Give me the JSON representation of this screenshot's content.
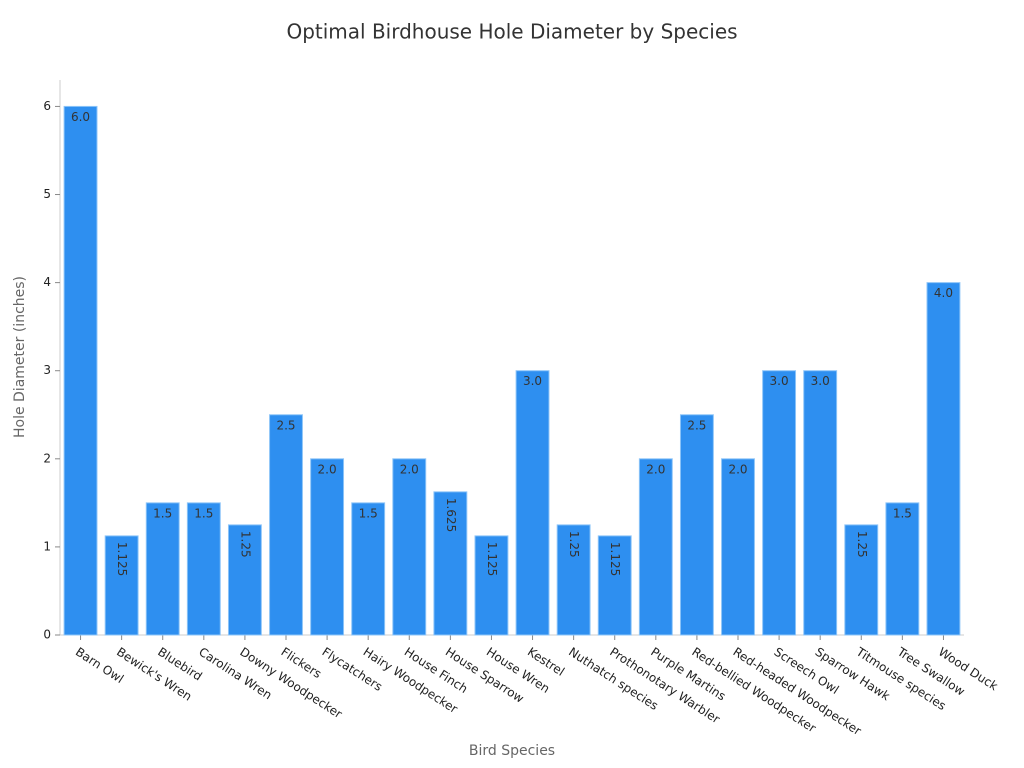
{
  "chart_data": {
    "type": "bar",
    "title": "Optimal Birdhouse Hole Diameter by Species",
    "x_label": "Bird Species",
    "y_label": "Hole Diameter (inches)",
    "categories": [
      "Barn Owl",
      "Bewick's Wren",
      "Bluebird",
      "Carolina Wren",
      "Downy Woodpecker",
      "Flickers",
      "Flycatchers",
      "Hairy Woodpecker",
      "House Finch",
      "House Sparrow",
      "House Wren",
      "Kestrel",
      "Nuthatch species",
      "Prothonotary Warbler",
      "Purple Martins",
      "Red-bellied Woodpecker",
      "Red-headed Woodpecker",
      "Screech Owl",
      "Sparrow Hawk",
      "Titmouse species",
      "Tree Swallow",
      "Wood Duck"
    ],
    "values": [
      6.0,
      1.125,
      1.5,
      1.5,
      1.25,
      2.5,
      2.0,
      1.5,
      2.0,
      1.625,
      1.125,
      3.0,
      1.25,
      1.125,
      2.0,
      2.5,
      2.0,
      3.0,
      3.0,
      1.25,
      1.5,
      4.0
    ],
    "value_labels": [
      "6.0",
      "1.125",
      "1.5",
      "1.5",
      "1.25",
      "2.5",
      "2.0",
      "1.5",
      "2.0",
      "1.625",
      "1.125",
      "3.0",
      "1.25",
      "1.125",
      "2.0",
      "2.5",
      "2.0",
      "3.0",
      "3.0",
      "1.25",
      "1.5",
      "4.0"
    ],
    "color": "#2e8ff0",
    "ylim": [
      0,
      6.3
    ],
    "yticks": [
      0,
      1,
      2,
      3,
      4,
      5,
      6
    ]
  }
}
